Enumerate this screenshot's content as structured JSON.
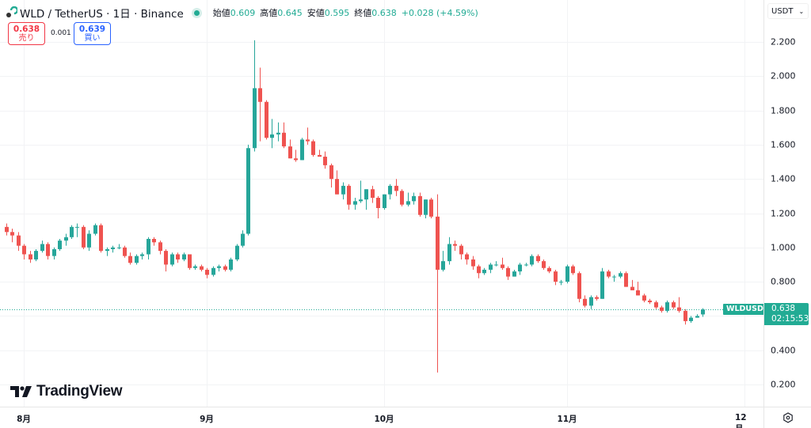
{
  "header": {
    "symbol_title": "WLD / TetherUS · 1日 · Binance",
    "ohlc": [
      {
        "label": "始値",
        "value": "0.609"
      },
      {
        "label": "高値",
        "value": "0.645"
      },
      {
        "label": "安値",
        "value": "0.595"
      },
      {
        "label": "終値",
        "value": "0.638"
      }
    ],
    "change": "+0.028 (+4.59%)"
  },
  "trade": {
    "sell_price": "0.638",
    "sell_label": "売り",
    "spread": "0.001",
    "buy_price": "0.639",
    "buy_label": "買い"
  },
  "price_axis": {
    "currency": "USDT",
    "ticks": [
      "2.200",
      "2.000",
      "1.800",
      "1.600",
      "1.400",
      "1.200",
      "1.000",
      "0.800",
      "0.400",
      "0.200"
    ],
    "last_price": "0.638",
    "countdown": "02:15:53",
    "symbol_tag": "WLDUSDT"
  },
  "time_axis": {
    "labels": [
      "8月",
      "9月",
      "10月",
      "11月",
      "12月"
    ]
  },
  "branding": {
    "wordmark": "TradingView"
  },
  "colors": {
    "up": "#22ab94",
    "down": "#f23645",
    "down_candle": "#ef5350",
    "up_candle": "#26a69a",
    "grid": "#f0f3fa",
    "text": "#131722"
  },
  "chart_data": {
    "type": "candlestick",
    "title": "WLD / TetherUS · 1日 · Binance",
    "xlabel": "",
    "ylabel": "USDT",
    "ylim": [
      0.15,
      2.3
    ],
    "y_ticks": [
      0.2,
      0.4,
      0.6,
      0.8,
      1.0,
      1.2,
      1.4,
      1.6,
      1.8,
      2.0,
      2.2
    ],
    "x_ticks": [
      "8月",
      "9月",
      "10月",
      "11月",
      "12月"
    ],
    "grid": true,
    "last_price": 0.638,
    "candles": [
      [
        1.12,
        1.14,
        1.07,
        1.09
      ],
      [
        1.09,
        1.11,
        1.03,
        1.07
      ],
      [
        1.07,
        1.09,
        0.98,
        1.01
      ],
      [
        1.01,
        1.02,
        0.93,
        0.96
      ],
      [
        0.96,
        0.98,
        0.91,
        0.93
      ],
      [
        0.93,
        0.99,
        0.92,
        0.98
      ],
      [
        0.98,
        1.04,
        0.97,
        1.02
      ],
      [
        1.02,
        1.03,
        0.93,
        0.95
      ],
      [
        0.95,
        1.0,
        0.93,
        0.99
      ],
      [
        0.99,
        1.05,
        0.98,
        1.04
      ],
      [
        1.04,
        1.08,
        1.01,
        1.06
      ],
      [
        1.06,
        1.13,
        1.05,
        1.12
      ],
      [
        1.12,
        1.14,
        1.06,
        1.12
      ],
      [
        1.12,
        1.13,
        0.99,
        1.0
      ],
      [
        1.0,
        1.1,
        0.98,
        1.08
      ],
      [
        1.08,
        1.14,
        1.07,
        1.13
      ],
      [
        1.13,
        1.14,
        0.97,
        0.98
      ],
      [
        0.98,
        1.0,
        0.95,
        0.99
      ],
      [
        0.99,
        1.01,
        0.97,
        1.0
      ],
      [
        1.0,
        1.02,
        0.99,
        1.0
      ],
      [
        1.0,
        1.01,
        0.94,
        0.95
      ],
      [
        0.95,
        0.97,
        0.9,
        0.91
      ],
      [
        0.91,
        0.96,
        0.9,
        0.95
      ],
      [
        0.95,
        0.97,
        0.93,
        0.96
      ],
      [
        0.96,
        1.06,
        0.93,
        1.05
      ],
      [
        1.05,
        1.06,
        1.01,
        1.03
      ],
      [
        1.03,
        1.04,
        0.96,
        0.98
      ],
      [
        0.98,
        0.99,
        0.86,
        0.9
      ],
      [
        0.9,
        0.97,
        0.89,
        0.96
      ],
      [
        0.96,
        0.97,
        0.91,
        0.93
      ],
      [
        0.93,
        0.97,
        0.92,
        0.96
      ],
      [
        0.96,
        0.96,
        0.87,
        0.88
      ],
      [
        0.88,
        0.9,
        0.87,
        0.89
      ],
      [
        0.89,
        0.9,
        0.86,
        0.87
      ],
      [
        0.87,
        0.88,
        0.82,
        0.84
      ],
      [
        0.84,
        0.89,
        0.83,
        0.88
      ],
      [
        0.88,
        0.9,
        0.86,
        0.89
      ],
      [
        0.89,
        0.9,
        0.86,
        0.87
      ],
      [
        0.87,
        0.94,
        0.86,
        0.93
      ],
      [
        0.93,
        1.02,
        0.92,
        1.01
      ],
      [
        1.01,
        1.1,
        1.0,
        1.08
      ],
      [
        1.08,
        1.6,
        1.07,
        1.58
      ],
      [
        1.58,
        2.21,
        1.56,
        1.93
      ],
      [
        1.93,
        2.05,
        1.62,
        1.85
      ],
      [
        1.85,
        1.86,
        1.63,
        1.64
      ],
      [
        1.64,
        1.75,
        1.58,
        1.66
      ],
      [
        1.66,
        1.73,
        1.62,
        1.67
      ],
      [
        1.67,
        1.73,
        1.58,
        1.59
      ],
      [
        1.59,
        1.63,
        1.52,
        1.52
      ],
      [
        1.52,
        1.57,
        1.5,
        1.51
      ],
      [
        1.51,
        1.64,
        1.51,
        1.63
      ],
      [
        1.63,
        1.7,
        1.6,
        1.62
      ],
      [
        1.62,
        1.63,
        1.53,
        1.54
      ],
      [
        1.54,
        1.57,
        1.53,
        1.53
      ],
      [
        1.53,
        1.56,
        1.46,
        1.48
      ],
      [
        1.48,
        1.49,
        1.35,
        1.4
      ],
      [
        1.4,
        1.45,
        1.31,
        1.31
      ],
      [
        1.31,
        1.38,
        1.28,
        1.36
      ],
      [
        1.36,
        1.37,
        1.22,
        1.25
      ],
      [
        1.25,
        1.29,
        1.22,
        1.27
      ],
      [
        1.27,
        1.39,
        1.26,
        1.28
      ],
      [
        1.28,
        1.34,
        1.22,
        1.34
      ],
      [
        1.34,
        1.36,
        1.26,
        1.29
      ],
      [
        1.29,
        1.3,
        1.17,
        1.23
      ],
      [
        1.23,
        1.31,
        1.22,
        1.31
      ],
      [
        1.31,
        1.37,
        1.28,
        1.36
      ],
      [
        1.36,
        1.4,
        1.3,
        1.33
      ],
      [
        1.33,
        1.34,
        1.24,
        1.25
      ],
      [
        1.25,
        1.32,
        1.24,
        1.27
      ],
      [
        1.27,
        1.32,
        1.25,
        1.3
      ],
      [
        1.3,
        1.32,
        1.18,
        1.19
      ],
      [
        1.19,
        1.28,
        1.17,
        1.28
      ],
      [
        1.28,
        1.29,
        1.17,
        1.18
      ],
      [
        1.18,
        1.31,
        0.27,
        0.87
      ],
      [
        0.87,
        0.98,
        0.86,
        0.92
      ],
      [
        0.92,
        1.06,
        0.9,
        1.02
      ],
      [
        1.02,
        1.04,
        0.98,
        1.01
      ],
      [
        1.01,
        1.02,
        0.93,
        0.96
      ],
      [
        0.96,
        0.97,
        0.9,
        0.93
      ],
      [
        0.93,
        0.95,
        0.87,
        0.89
      ],
      [
        0.89,
        0.9,
        0.82,
        0.85
      ],
      [
        0.85,
        0.88,
        0.84,
        0.87
      ],
      [
        0.87,
        0.91,
        0.85,
        0.9
      ],
      [
        0.9,
        0.92,
        0.89,
        0.9
      ],
      [
        0.9,
        0.94,
        0.87,
        0.88
      ],
      [
        0.88,
        0.89,
        0.81,
        0.83
      ],
      [
        0.83,
        0.87,
        0.83,
        0.86
      ],
      [
        0.86,
        0.91,
        0.84,
        0.9
      ],
      [
        0.9,
        0.91,
        0.89,
        0.9
      ],
      [
        0.9,
        0.96,
        0.89,
        0.95
      ],
      [
        0.95,
        0.96,
        0.91,
        0.92
      ],
      [
        0.92,
        0.93,
        0.87,
        0.88
      ],
      [
        0.88,
        0.89,
        0.85,
        0.86
      ],
      [
        0.86,
        0.87,
        0.78,
        0.8
      ],
      [
        0.8,
        0.81,
        0.78,
        0.8
      ],
      [
        0.8,
        0.9,
        0.79,
        0.89
      ],
      [
        0.89,
        0.9,
        0.84,
        0.85
      ],
      [
        0.85,
        0.86,
        0.68,
        0.7
      ],
      [
        0.7,
        0.72,
        0.65,
        0.66
      ],
      [
        0.66,
        0.72,
        0.64,
        0.71
      ],
      [
        0.71,
        0.72,
        0.69,
        0.7
      ],
      [
        0.7,
        0.88,
        0.7,
        0.86
      ],
      [
        0.86,
        0.87,
        0.82,
        0.83
      ],
      [
        0.83,
        0.84,
        0.8,
        0.83
      ],
      [
        0.83,
        0.86,
        0.82,
        0.85
      ],
      [
        0.85,
        0.86,
        0.77,
        0.77
      ],
      [
        0.77,
        0.81,
        0.75,
        0.75
      ],
      [
        0.75,
        0.8,
        0.72,
        0.72
      ],
      [
        0.72,
        0.73,
        0.68,
        0.69
      ],
      [
        0.69,
        0.7,
        0.67,
        0.68
      ],
      [
        0.68,
        0.69,
        0.64,
        0.65
      ],
      [
        0.65,
        0.66,
        0.62,
        0.63
      ],
      [
        0.63,
        0.69,
        0.62,
        0.68
      ],
      [
        0.68,
        0.69,
        0.64,
        0.65
      ],
      [
        0.65,
        0.71,
        0.62,
        0.63
      ],
      [
        0.63,
        0.64,
        0.55,
        0.57
      ],
      [
        0.57,
        0.6,
        0.56,
        0.59
      ],
      [
        0.59,
        0.61,
        0.59,
        0.6
      ],
      [
        0.609,
        0.645,
        0.595,
        0.638
      ]
    ]
  }
}
